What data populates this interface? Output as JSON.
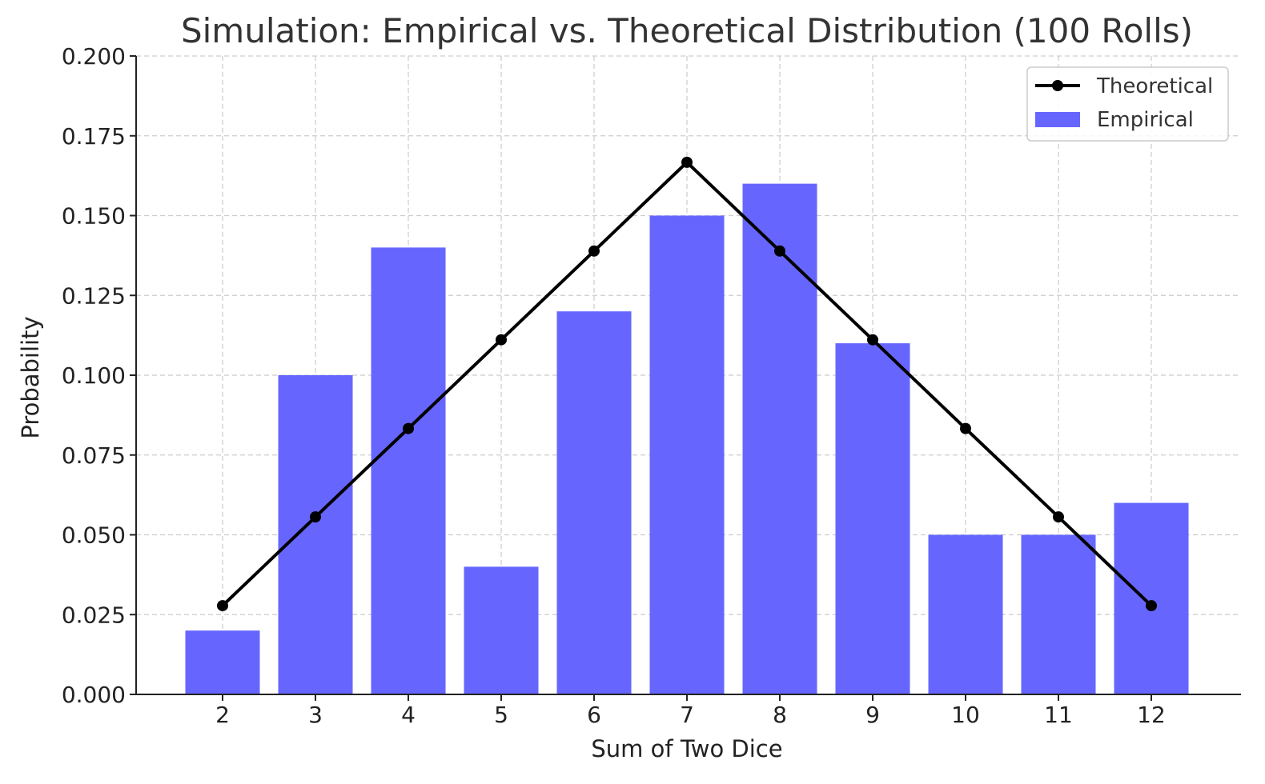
{
  "chart_data": {
    "type": "bar",
    "title": "Simulation: Empirical vs. Theoretical Distribution (100 Rolls)",
    "xlabel": "Sum of Two Dice",
    "ylabel": "Probability",
    "categories": [
      "2",
      "3",
      "4",
      "5",
      "6",
      "7",
      "8",
      "9",
      "10",
      "11",
      "12"
    ],
    "ylim": [
      0,
      0.2
    ],
    "yticks": [
      "0.000",
      "0.025",
      "0.050",
      "0.075",
      "0.100",
      "0.125",
      "0.150",
      "0.175",
      "0.200"
    ],
    "ytick_values": [
      0,
      0.025,
      0.05,
      0.075,
      0.1,
      0.125,
      0.15,
      0.175,
      0.2
    ],
    "grid": true,
    "legend_position": "top-right",
    "series": [
      {
        "name": "Theoretical",
        "kind": "line",
        "color": "#000000",
        "values": [
          0.0278,
          0.0556,
          0.0833,
          0.1111,
          0.1389,
          0.1667,
          0.1389,
          0.1111,
          0.0833,
          0.0556,
          0.0278
        ]
      },
      {
        "name": "Empirical",
        "kind": "bar",
        "color": "#6666ff",
        "values": [
          0.02,
          0.1,
          0.14,
          0.04,
          0.12,
          0.15,
          0.16,
          0.11,
          0.05,
          0.05,
          0.06
        ]
      }
    ]
  }
}
